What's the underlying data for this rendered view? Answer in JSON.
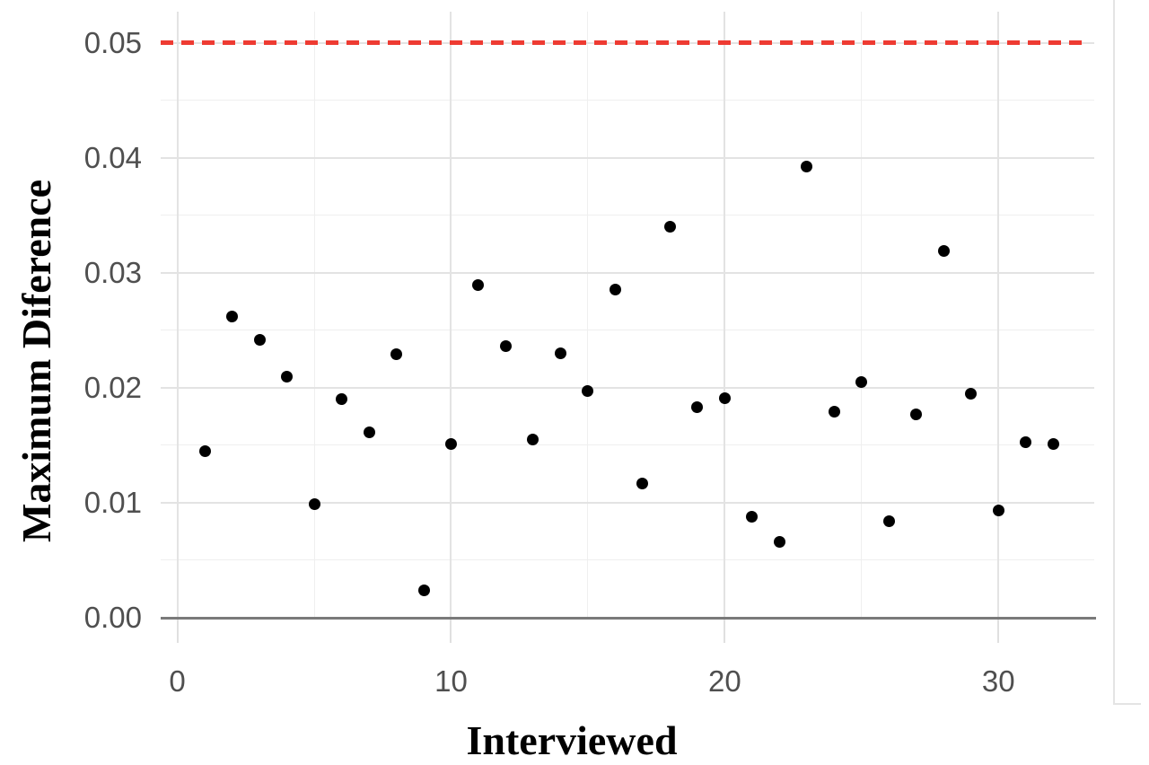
{
  "chart_data": {
    "type": "scatter",
    "title": "",
    "xlabel": "Interviewed",
    "ylabel": "Maximum Diference",
    "x": [
      1,
      2,
      3,
      4,
      5,
      6,
      7,
      8,
      9,
      10,
      11,
      12,
      13,
      14,
      15,
      16,
      17,
      18,
      19,
      20,
      21,
      22,
      23,
      24,
      25,
      26,
      27,
      28,
      29,
      30,
      31,
      32
    ],
    "y": [
      0.0145,
      0.0262,
      0.0242,
      0.021,
      0.0099,
      0.019,
      0.0161,
      0.0229,
      0.0024,
      0.0151,
      0.0289,
      0.0236,
      0.0155,
      0.023,
      0.0197,
      0.0285,
      0.0117,
      0.034,
      0.0183,
      0.0191,
      0.0088,
      0.0066,
      0.0392,
      0.0179,
      0.0205,
      0.0084,
      0.0177,
      0.0319,
      0.0195,
      0.0093,
      0.0153,
      0.0151
    ],
    "xlim": [
      -0.61,
      33.5
    ],
    "ylim": [
      0,
      0.0527
    ],
    "x_ticks": [
      0,
      10,
      20,
      30
    ],
    "x_tick_labels": [
      "0",
      "10",
      "20",
      "30"
    ],
    "x_minor_ticks": [
      5,
      15,
      25
    ],
    "y_ticks": [
      0,
      0.01,
      0.02,
      0.03,
      0.04,
      0.05
    ],
    "y_tick_labels": [
      "0.00",
      "0.01",
      "0.02",
      "0.03",
      "0.04",
      "0.05"
    ],
    "y_minor_ticks": [
      0.005,
      0.015,
      0.025,
      0.035,
      0.045
    ],
    "grid": true,
    "legend": "none",
    "reference_line": {
      "y": 0.05,
      "style": "dashed",
      "color": "#ee3b32"
    },
    "colors": {
      "point": "#000000",
      "grid_major": "#e3e3e3",
      "grid_minor": "#efefef",
      "axis_line": "#7a7a7a",
      "tick_mark": "#e0e0e0",
      "tick_label": "#4f4f4f",
      "axis_title": "#000000",
      "background": "#ffffff"
    }
  }
}
